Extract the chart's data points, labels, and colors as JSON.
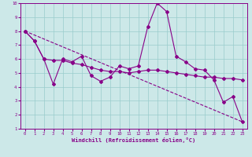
{
  "background_color": "#cce8e8",
  "grid_color": "#99cccc",
  "line_color": "#880088",
  "xlabel": "Windchill (Refroidissement éolien,°C)",
  "xlim": [
    -0.5,
    23.5
  ],
  "ylim": [
    1,
    10
  ],
  "xticks": [
    0,
    1,
    2,
    3,
    4,
    5,
    6,
    7,
    8,
    9,
    10,
    11,
    12,
    13,
    14,
    15,
    16,
    17,
    18,
    19,
    20,
    21,
    22,
    23
  ],
  "yticks": [
    1,
    2,
    3,
    4,
    5,
    6,
    7,
    8,
    9,
    10
  ],
  "line1_x": [
    0,
    1,
    2,
    3,
    4,
    5,
    6,
    7,
    8,
    9,
    10,
    11,
    12,
    13,
    14,
    15,
    16,
    17,
    18,
    19,
    20,
    21,
    22,
    23
  ],
  "line1_y": [
    8.0,
    7.3,
    6.0,
    4.2,
    6.0,
    5.8,
    6.2,
    4.8,
    4.4,
    4.7,
    5.5,
    5.3,
    5.5,
    8.3,
    10.0,
    9.4,
    6.2,
    5.8,
    5.3,
    5.2,
    4.5,
    2.9,
    3.3,
    1.5
  ],
  "line2_x": [
    0,
    1,
    2,
    3,
    4,
    5,
    6,
    7,
    8,
    9,
    10,
    11,
    12,
    13,
    14,
    15,
    16,
    17,
    18,
    19,
    20,
    21,
    22,
    23
  ],
  "line2_y": [
    8.0,
    7.3,
    6.0,
    5.9,
    5.9,
    5.7,
    5.6,
    5.4,
    5.2,
    5.1,
    5.1,
    5.0,
    5.1,
    5.2,
    5.2,
    5.1,
    5.0,
    4.9,
    4.8,
    4.7,
    4.7,
    4.6,
    4.6,
    4.5
  ],
  "line3_x": [
    0,
    23
  ],
  "line3_y": [
    8.0,
    1.5
  ],
  "markersize": 2.0,
  "linewidth": 0.8,
  "tick_fontsize": 4.0,
  "xlabel_fontsize": 5.0
}
